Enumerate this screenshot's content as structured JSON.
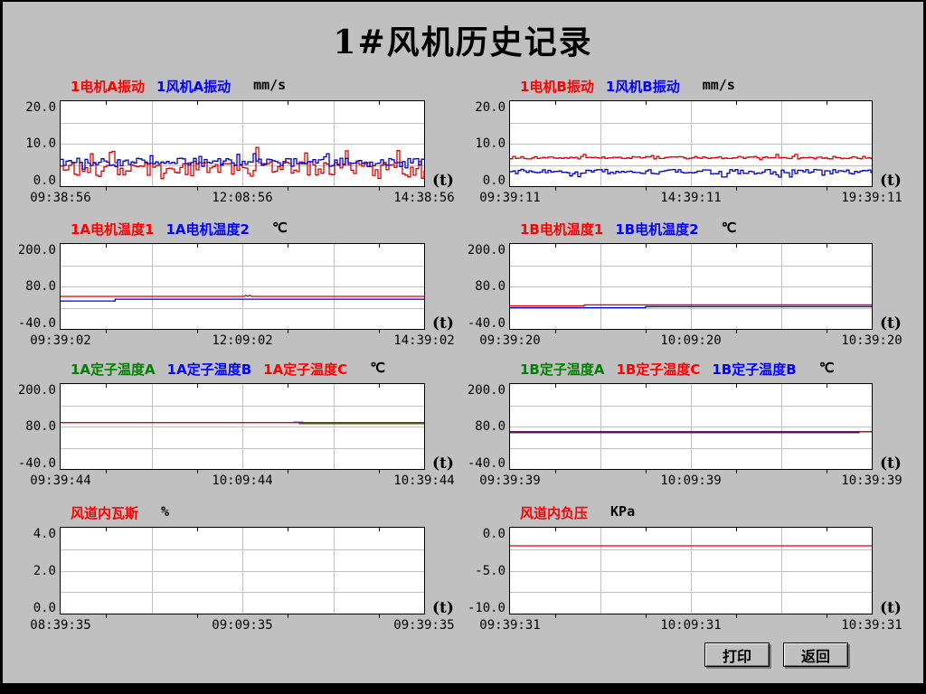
{
  "title": "1#风机历史记录",
  "buttons": {
    "print": "打印",
    "back": "返回"
  },
  "colors": {
    "background": "#c0c0c0",
    "plot_background": "#ffffff",
    "grid": "#c0c0c0",
    "line_red": "#dd0000",
    "line_blue": "#0000cc",
    "line_green": "#007a00",
    "legend_red": "#ff0000",
    "legend_blue": "#0000ff",
    "legend_green": "#008000"
  },
  "chart_data": [
    {
      "id": "motor-a-vibration",
      "type": "line",
      "unit": "mm/s",
      "ylim": [
        0,
        20
      ],
      "yticks": [
        "20.0",
        "10.0",
        "0.0"
      ],
      "xticks": [
        "09:38:56",
        "12:08:56",
        "14:38:56"
      ],
      "xlabel": "(t)",
      "grid": true,
      "series": [
        {
          "name": "1电机A振动",
          "color": "#dd0000",
          "legend_color": "#ff0000",
          "noise": {
            "base": 4.2,
            "amp": 1.7,
            "spike_chance": 0.05,
            "spike_amp": 5.5,
            "dip_chance": 0.07,
            "dip_amp": 2.6,
            "seed": 11,
            "step": 3
          }
        },
        {
          "name": "1风机A振动",
          "color": "#0000cc",
          "legend_color": "#0000ff",
          "noise": {
            "base": 5.6,
            "amp": 1.0,
            "spike_chance": 0.03,
            "spike_amp": 2.2,
            "dip_chance": 0.03,
            "dip_amp": 1.6,
            "seed": 97,
            "step": 3
          }
        }
      ]
    },
    {
      "id": "motor-b-vibration",
      "type": "line",
      "unit": "mm/s",
      "ylim": [
        0,
        20
      ],
      "yticks": [
        "20.0",
        "10.0",
        "0.0"
      ],
      "xticks": [
        "09:39:11",
        "14:39:11",
        "19:39:11"
      ],
      "xlabel": "(t)",
      "grid": true,
      "series": [
        {
          "name": "1电机B振动",
          "color": "#dd0000",
          "legend_color": "#ff0000",
          "noise": {
            "base": 6.7,
            "amp": 0.3,
            "spike_chance": 0.02,
            "spike_amp": 0.8,
            "dip_chance": 0.02,
            "dip_amp": 0.6,
            "seed": 41,
            "step": 3
          }
        },
        {
          "name": "1风机B振动",
          "color": "#0000cc",
          "legend_color": "#0000ff",
          "noise": {
            "base": 3.4,
            "amp": 0.55,
            "spike_chance": 0.02,
            "spike_amp": 0.7,
            "dip_chance": 0.06,
            "dip_amp": 1.3,
            "seed": 73,
            "step": 3
          }
        }
      ]
    },
    {
      "id": "motor-1a-temperature",
      "type": "line",
      "unit": "℃",
      "ylim": [
        -40,
        200
      ],
      "yticks": [
        "200.0",
        "80.0",
        "-40.0"
      ],
      "xticks": [
        "09:39:02",
        "12:09:02",
        "14:39:02"
      ],
      "xlabel": "(t)",
      "grid": true,
      "series": [
        {
          "name": "1A电机温度1",
          "color": "#dd0000",
          "legend_color": "#ff0000",
          "points": [
            [
              0,
              52
            ],
            [
              0.505,
              52
            ],
            [
              0.51,
              55
            ],
            [
              0.515,
              52
            ],
            [
              0.52,
              55
            ],
            [
              0.525,
              52
            ],
            [
              1,
              52
            ]
          ]
        },
        {
          "name": "1A电机温度2",
          "color": "#0000cc",
          "legend_color": "#0000ff",
          "points": [
            [
              0,
              39
            ],
            [
              0.15,
              39
            ],
            [
              0.15,
              44
            ],
            [
              1,
              44
            ]
          ]
        }
      ]
    },
    {
      "id": "motor-1b-temperature",
      "type": "line",
      "unit": "℃",
      "ylim": [
        -40,
        200
      ],
      "yticks": [
        "200.0",
        "80.0",
        "-40.0"
      ],
      "xticks": [
        "09:39:20",
        "10:09:20",
        "10:39:20"
      ],
      "xlabel": "(t)",
      "grid": true,
      "series": [
        {
          "name": "1B电机温度1",
          "color": "#dd0000",
          "legend_color": "#ff0000",
          "points": [
            [
              0,
              25
            ],
            [
              0.205,
              25
            ],
            [
              0.205,
              28
            ],
            [
              1,
              28
            ]
          ]
        },
        {
          "name": "1B电机温度2",
          "color": "#0000cc",
          "legend_color": "#0000ff",
          "points": [
            [
              0,
              20
            ],
            [
              0.375,
              20
            ],
            [
              0.375,
              23
            ],
            [
              1,
              23
            ]
          ]
        }
      ]
    },
    {
      "id": "stator-1a-temperature",
      "type": "line",
      "unit": "℃",
      "ylim": [
        -40,
        200
      ],
      "yticks": [
        "200.0",
        "80.0",
        "-40.0"
      ],
      "xticks": [
        "09:39:44",
        "10:09:44",
        "10:39:44"
      ],
      "xlabel": "(t)",
      "grid": true,
      "series": [
        {
          "name": "1A定子温度A",
          "color": "#007a00",
          "legend_color": "#008000",
          "points": [
            [
              0.655,
              88
            ],
            [
              1,
              88
            ]
          ]
        },
        {
          "name": "1A定子温度B",
          "color": "#0000cc",
          "legend_color": "#0000ff",
          "points": [
            [
              0.64,
              92
            ],
            [
              0.668,
              92
            ]
          ]
        },
        {
          "name": "1A定子温度C",
          "color": "#dd0000",
          "legend_color": "#ff0000",
          "points": [
            [
              0,
              91
            ],
            [
              1,
              91
            ]
          ]
        }
      ]
    },
    {
      "id": "stator-1b-temperature",
      "type": "line",
      "unit": "℃",
      "ylim": [
        -40,
        200
      ],
      "yticks": [
        "200.0",
        "80.0",
        "-40.0"
      ],
      "xticks": [
        "09:39:39",
        "10:09:39",
        "10:39:39"
      ],
      "xlabel": "(t)",
      "grid": true,
      "series": [
        {
          "name": "1B定子温度A",
          "color": "#007a00",
          "legend_color": "#008000",
          "points": [
            [
              0,
              65
            ],
            [
              1,
              65
            ]
          ]
        },
        {
          "name": "1B定子温度C",
          "color": "#dd0000",
          "legend_color": "#ff0000",
          "points": [
            [
              0,
              62.5
            ],
            [
              0.965,
              62.5
            ],
            [
              0.965,
              65.5
            ],
            [
              1,
              65.5
            ]
          ]
        },
        {
          "name": "1B定子温度B",
          "color": "#0000cc",
          "legend_color": "#0000ff",
          "points": [
            [
              0,
              65
            ],
            [
              0.965,
              65
            ]
          ]
        }
      ]
    },
    {
      "id": "duct-gas",
      "type": "line",
      "unit": "%",
      "ylim": [
        0,
        4
      ],
      "yticks": [
        "4.0",
        "2.0",
        "0.0"
      ],
      "xticks": [
        "08:39:35",
        "09:09:35",
        "09:39:35"
      ],
      "xlabel": "(t)",
      "grid": true,
      "series": [
        {
          "name": "风道内瓦斯",
          "color": "#dd0000",
          "legend_color": "#ff0000",
          "points": []
        }
      ]
    },
    {
      "id": "duct-negative-pressure",
      "type": "line",
      "unit": "KPa",
      "ylim": [
        -10,
        0
      ],
      "yticks": [
        "0.0",
        "-5.0",
        "-10.0"
      ],
      "xticks": [
        "09:39:31",
        "10:09:31",
        "10:39:31"
      ],
      "xlabel": "(t)",
      "grid": true,
      "series": [
        {
          "name": "风道内负压",
          "color": "#dd0000",
          "legend_color": "#ff0000",
          "points": [
            [
              0,
              -2.1
            ],
            [
              1,
              -2.1
            ]
          ]
        }
      ]
    }
  ]
}
